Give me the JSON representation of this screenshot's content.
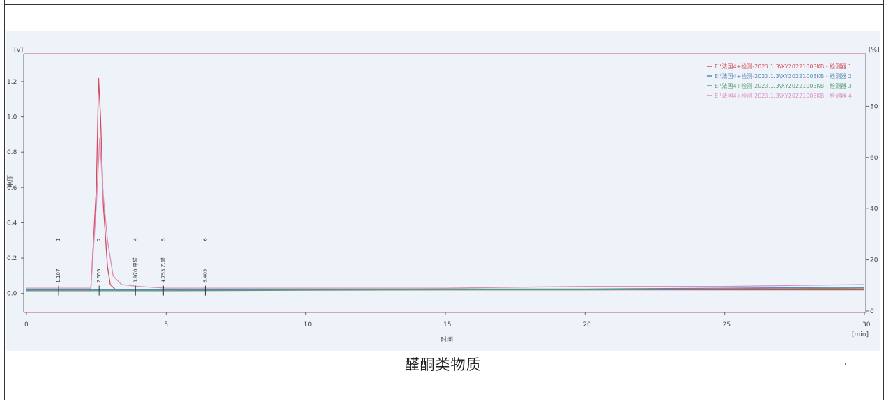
{
  "caption": "醛酮类物质",
  "colors": {
    "red": "#d64a5a",
    "blue": "#5a86b8",
    "green": "#58a077",
    "pink": "#d98fb9"
  },
  "chart_data": {
    "type": "line",
    "title": "",
    "xlabel": "时间",
    "x_unit": "[min]",
    "ylabel": "电压",
    "y_unit": "[V]",
    "y2_unit": "[%]",
    "xlim": [
      0,
      30
    ],
    "ylim": [
      -0.1,
      1.35
    ],
    "y2lim": [
      0,
      100
    ],
    "x_ticks": [
      "0",
      "5",
      "10",
      "15",
      "20",
      "25",
      "30"
    ],
    "y_ticks": [
      "0.0",
      "0.2",
      "0.4",
      "0.6",
      "0.8",
      "1.0",
      "1.2"
    ],
    "y2_ticks": [
      "0",
      "20",
      "40",
      "60",
      "80"
    ],
    "grid": false,
    "legend_position": "top-right",
    "series": [
      {
        "name": "E:\\法国4+检测-2023.1.3\\XY20221003KB - 检测器 1",
        "color": "red",
        "x": [
          0,
          2.3,
          2.5,
          2.58,
          2.65,
          2.75,
          2.9,
          3.0,
          3.2,
          5,
          10,
          15,
          20,
          25,
          30
        ],
        "y": [
          0.02,
          0.02,
          0.6,
          1.22,
          1.0,
          0.5,
          0.15,
          0.05,
          0.02,
          0.02,
          0.02,
          0.02,
          0.02,
          0.02,
          0.02
        ]
      },
      {
        "name": "E:\\法国4+检测-2023.1.3\\XY20221003KB - 检测器 2",
        "color": "blue",
        "x": [
          0,
          5,
          10,
          15,
          20,
          25,
          30
        ],
        "y": [
          0.02,
          0.02,
          0.02,
          0.025,
          0.025,
          0.03,
          0.035
        ]
      },
      {
        "name": "E:\\法国4+检测-2023.1.3\\XY20221003KB - 检测器 3",
        "color": "green",
        "x": [
          0,
          5,
          10,
          15,
          20,
          25,
          30
        ],
        "y": [
          0.015,
          0.015,
          0.018,
          0.02,
          0.02,
          0.025,
          0.03
        ]
      },
      {
        "name": "E:\\法国4+检测-2023.1.3\\XY20221003KB - 检测器 4",
        "color": "pink",
        "x": [
          0,
          2.3,
          2.5,
          2.62,
          2.75,
          2.9,
          3.1,
          3.4,
          4,
          5,
          10,
          15,
          20,
          25,
          30
        ],
        "y": [
          0.03,
          0.03,
          0.5,
          0.88,
          0.55,
          0.3,
          0.1,
          0.05,
          0.04,
          0.03,
          0.03,
          0.03,
          0.04,
          0.04,
          0.05
        ]
      }
    ],
    "peaks": [
      {
        "x": 1.15,
        "label": "1.107",
        "number": "1"
      },
      {
        "x": 2.6,
        "label": "2.555",
        "number": "2"
      },
      {
        "x": 3.9,
        "label": "3.970 甲醛",
        "number": "4"
      },
      {
        "x": 4.9,
        "label": "4.753 乙醛",
        "number": "5"
      },
      {
        "x": 6.4,
        "label": "6.403",
        "number": "6"
      }
    ]
  }
}
